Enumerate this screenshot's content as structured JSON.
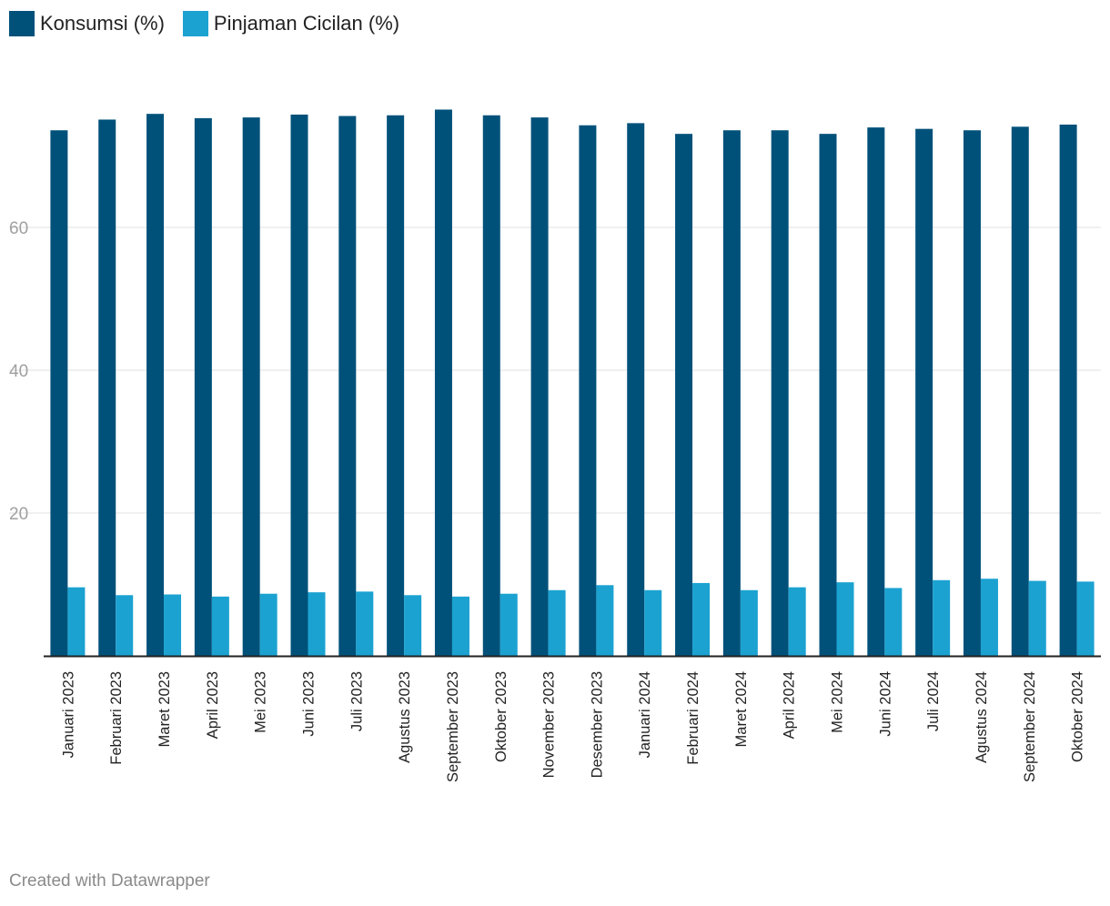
{
  "legend": {
    "items": [
      {
        "label": "Konsumsi (%)",
        "color": "#00517a"
      },
      {
        "label": "Pinjaman Cicilan (%)",
        "color": "#1ba2d1"
      }
    ]
  },
  "footer": {
    "credit": "Created with Datawrapper"
  },
  "chart_data": {
    "type": "bar",
    "categories": [
      "Januari 2023",
      "Februari 2023",
      "Maret 2023",
      "April 2023",
      "Mei 2023",
      "Juni 2023",
      "Juli 2023",
      "Agustus 2023",
      "September 2023",
      "Oktober 2023",
      "November 2023",
      "Desember 2023",
      "Januari 2024",
      "Februari 2024",
      "Maret 2024",
      "April 2024",
      "Mei 2024",
      "Juni 2024",
      "Juli 2024",
      "Agustus 2024",
      "September 2024",
      "Oktober 2024"
    ],
    "series": [
      {
        "name": "Konsumsi (%)",
        "color": "#00517a",
        "values": [
          73.6,
          75.1,
          75.9,
          75.3,
          75.4,
          75.8,
          75.6,
          75.7,
          76.5,
          75.7,
          75.4,
          74.3,
          74.6,
          73.1,
          73.6,
          73.6,
          73.1,
          74.0,
          73.8,
          73.6,
          74.1,
          74.4
        ]
      },
      {
        "name": "Pinjaman Cicilan (%)",
        "color": "#1ba2d1",
        "values": [
          9.6,
          8.5,
          8.6,
          8.3,
          8.7,
          8.9,
          9.0,
          8.5,
          8.3,
          8.7,
          9.2,
          9.9,
          9.2,
          10.2,
          9.2,
          9.6,
          10.3,
          9.5,
          10.6,
          10.8,
          10.5,
          10.4
        ]
      }
    ],
    "yticks": [
      20,
      40,
      60
    ],
    "ylim": [
      0,
      80
    ],
    "grid": true,
    "legend_position": "top-left",
    "xlabel": "",
    "ylabel": "",
    "title": ""
  }
}
